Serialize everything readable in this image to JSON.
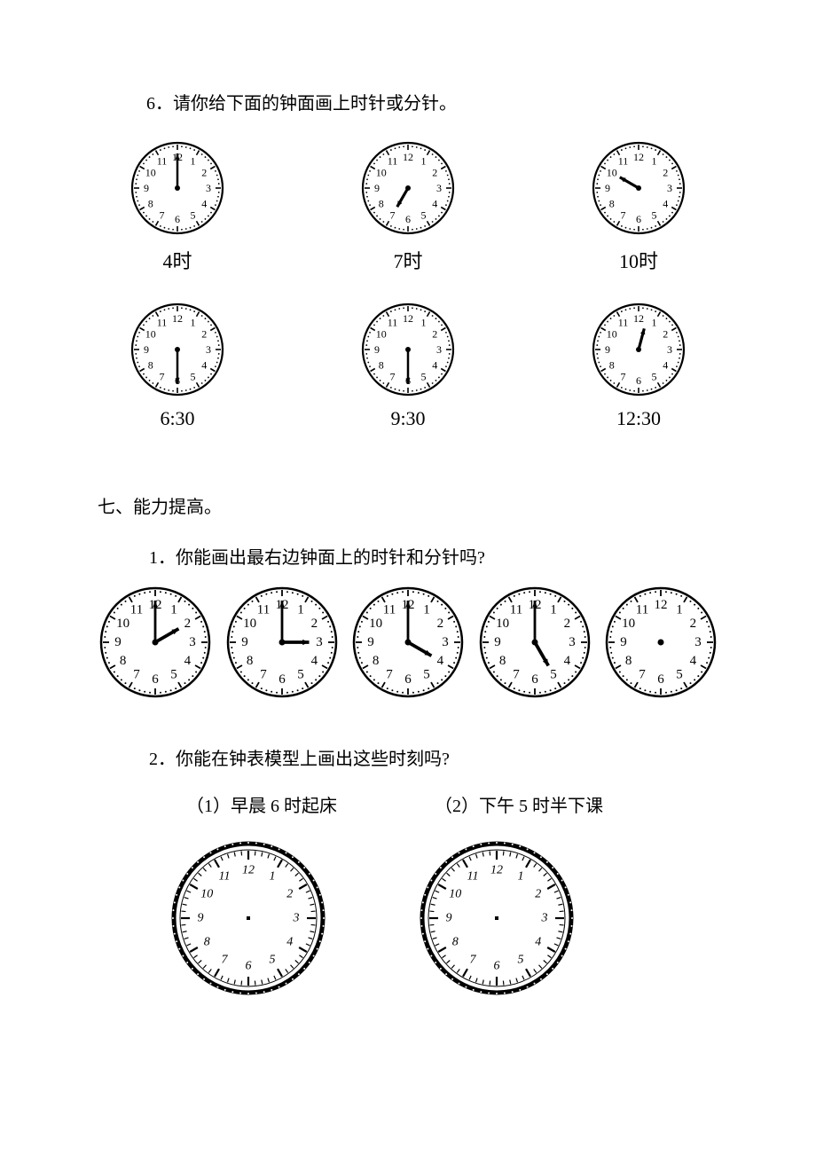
{
  "q6": {
    "text": "6．请你给下面的钟面画上时针或分针。",
    "clocks_row1": [
      {
        "label": "4时",
        "minute_angle": 0,
        "hour_angle": null,
        "has_minute": true,
        "has_hour": false
      },
      {
        "label": "7时",
        "minute_angle": null,
        "hour_angle": 210,
        "has_minute": false,
        "has_hour": true
      },
      {
        "label": "10时",
        "minute_angle": null,
        "hour_angle": 300,
        "has_minute": false,
        "has_hour": true
      }
    ],
    "clocks_row2": [
      {
        "label": "6:30",
        "minute_angle": 180,
        "hour_angle": null,
        "has_minute": true,
        "has_hour": false
      },
      {
        "label": "9:30",
        "minute_angle": 180,
        "hour_angle": null,
        "has_minute": true,
        "has_hour": false
      },
      {
        "label": "12:30",
        "minute_angle": null,
        "hour_angle": 15,
        "has_minute": false,
        "has_hour": true
      }
    ]
  },
  "section7": {
    "title": "七、能力提高。",
    "q1": {
      "text": "1．你能画出最右边钟面上的时针和分针吗?",
      "clocks": [
        {
          "minute_angle": 0,
          "hour_angle": 60,
          "has_hands": true
        },
        {
          "minute_angle": 0,
          "hour_angle": 90,
          "has_hands": true
        },
        {
          "minute_angle": 0,
          "hour_angle": 120,
          "has_hands": true
        },
        {
          "minute_angle": 0,
          "hour_angle": 150,
          "has_hands": true
        },
        {
          "minute_angle": null,
          "hour_angle": null,
          "has_hands": false
        }
      ]
    },
    "q2": {
      "text": "2．你能在钟表模型上画出这些时刻吗?",
      "sub1": "（1）早晨 6 时起床",
      "sub2": "（2）下午 5 时半下课"
    }
  },
  "numerals": [
    "12",
    "1",
    "2",
    "3",
    "4",
    "5",
    "6",
    "7",
    "8",
    "9",
    "10",
    "11"
  ],
  "colors": {
    "ink": "#000000",
    "bg": "#ffffff"
  }
}
